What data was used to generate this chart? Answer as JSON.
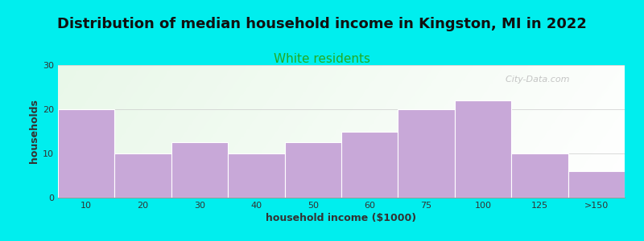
{
  "title": "Distribution of median household income in Kingston, MI in 2022",
  "subtitle": "White residents",
  "xlabel": "household income ($1000)",
  "ylabel": "households",
  "categories": [
    "10",
    "20",
    "30",
    "40",
    "50",
    "60",
    "75",
    "100",
    "125",
    ">150"
  ],
  "values": [
    20,
    10,
    12.5,
    10,
    12.5,
    15,
    20,
    22,
    10,
    6
  ],
  "bar_color": "#C8A8D8",
  "bar_edge_color": "#FFFFFF",
  "background_color": "#00EEEE",
  "title_fontsize": 13,
  "title_color": "#111111",
  "subtitle_fontsize": 11,
  "subtitle_color": "#22AA22",
  "axis_label_fontsize": 9,
  "axis_label_color": "#333333",
  "tick_fontsize": 8,
  "tick_color": "#333333",
  "ylim": [
    0,
    30
  ],
  "yticks": [
    0,
    10,
    20,
    30
  ],
  "watermark": "  City-Data.com",
  "watermark_color": "#BBBBBB",
  "grad_color_left": "#E0F5E0",
  "grad_color_right": "#F8F8F8"
}
